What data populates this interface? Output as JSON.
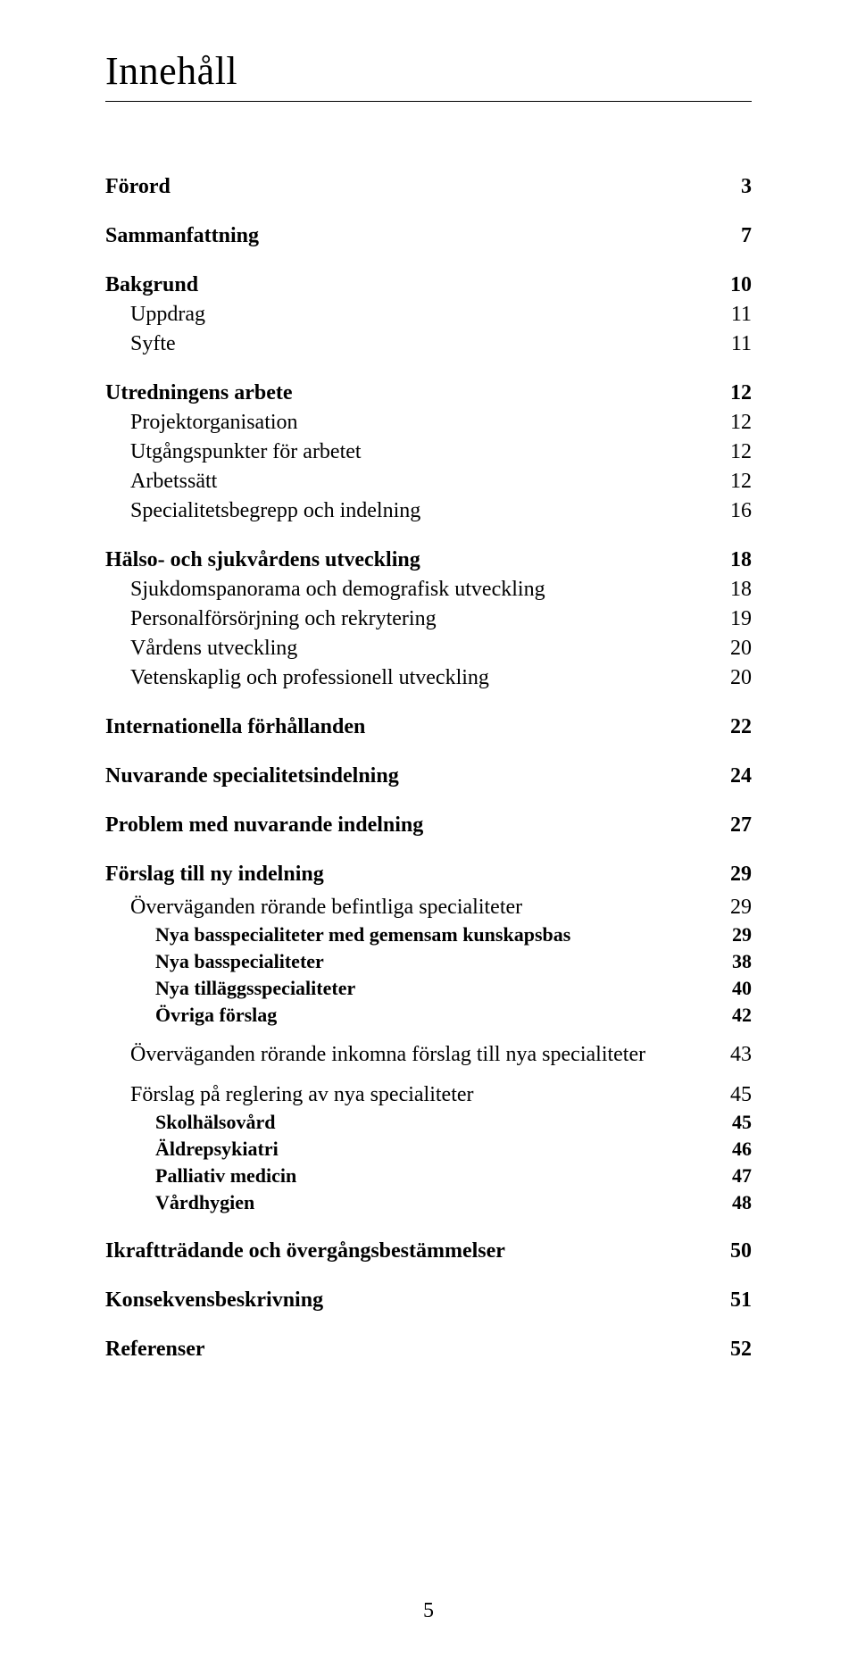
{
  "title": "Innehåll",
  "colors": {
    "text": "#000000",
    "background": "#ffffff",
    "rule": "#000000"
  },
  "typography": {
    "family": "Times New Roman",
    "title_fontsize": 44,
    "body_fontsize": 24,
    "sub_fontsize": 22
  },
  "page_number": "5",
  "toc": [
    {
      "label": "Förord",
      "page": "3",
      "level": 0
    },
    {
      "label": "Sammanfattning",
      "page": "7",
      "level": 0
    },
    {
      "label": "Bakgrund",
      "page": "10",
      "level": 0
    },
    {
      "label": "Uppdrag",
      "page": "11",
      "level": 1
    },
    {
      "label": "Syfte",
      "page": "11",
      "level": 1
    },
    {
      "label": "Utredningens arbete",
      "page": "12",
      "level": 0
    },
    {
      "label": "Projektorganisation",
      "page": "12",
      "level": 1
    },
    {
      "label": "Utgångspunkter för arbetet",
      "page": "12",
      "level": 1
    },
    {
      "label": "Arbetssätt",
      "page": "12",
      "level": 1
    },
    {
      "label": "Specialitetsbegrepp och indelning",
      "page": "16",
      "level": 1
    },
    {
      "label": "Hälso- och sjukvårdens utveckling",
      "page": "18",
      "level": 0
    },
    {
      "label": "Sjukdomspanorama och demografisk utveckling",
      "page": "18",
      "level": 1
    },
    {
      "label": "Personalförsörjning och rekrytering",
      "page": "19",
      "level": 1
    },
    {
      "label": "Vårdens utveckling",
      "page": "20",
      "level": 1
    },
    {
      "label": "Vetenskaplig och professionell utveckling",
      "page": "20",
      "level": 1
    },
    {
      "label": "Internationella förhållanden",
      "page": "22",
      "level": 0
    },
    {
      "label": "Nuvarande specialitetsindelning",
      "page": "24",
      "level": 0
    },
    {
      "label": "Problem med nuvarande indelning",
      "page": "27",
      "level": 0
    },
    {
      "label": "Förslag till ny indelning",
      "page": "29",
      "level": 0
    },
    {
      "label": "Överväganden rörande befintliga specialiteter",
      "page": "29",
      "level": 1,
      "spaced": true,
      "first": true
    },
    {
      "label": "Nya basspecialiteter med gemensam kunskapsbas",
      "page": "29",
      "level": 2
    },
    {
      "label": "Nya basspecialiteter",
      "page": "38",
      "level": 2
    },
    {
      "label": "Nya tilläggsspecialiteter",
      "page": "40",
      "level": 2
    },
    {
      "label": "Övriga förslag",
      "page": "42",
      "level": 2
    },
    {
      "label": "Överväganden rörande inkomna förslag till nya specialiteter",
      "page": "43",
      "level": 1,
      "spaced": true
    },
    {
      "label": "Förslag på reglering av nya specialiteter",
      "page": "45",
      "level": 1,
      "spaced": true
    },
    {
      "label": "Skolhälsovård",
      "page": "45",
      "level": 2
    },
    {
      "label": "Äldrepsykiatri",
      "page": "46",
      "level": 2
    },
    {
      "label": "Palliativ medicin",
      "page": "47",
      "level": 2
    },
    {
      "label": "Vårdhygien",
      "page": "48",
      "level": 2
    },
    {
      "label": "Ikraftträdande och övergångsbestämmelser",
      "page": "50",
      "level": 0
    },
    {
      "label": "Konsekvensbeskrivning",
      "page": "51",
      "level": 0
    },
    {
      "label": "Referenser",
      "page": "52",
      "level": 0
    }
  ]
}
